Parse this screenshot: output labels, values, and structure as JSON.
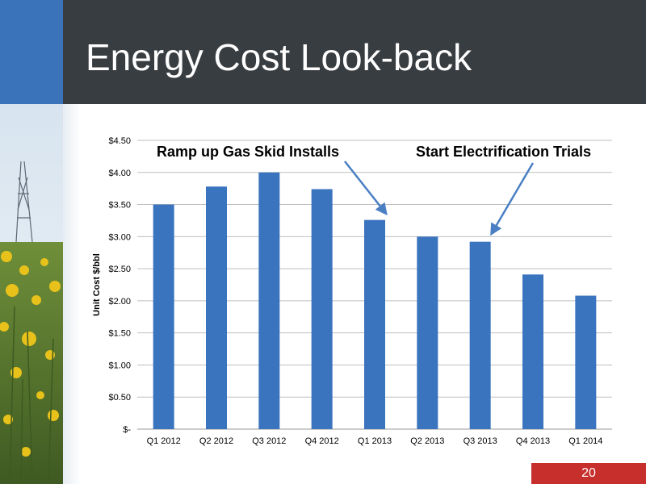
{
  "slide": {
    "title": "Energy Cost Look-back",
    "page_number": "20"
  },
  "colors": {
    "bar": "#3a74bf",
    "annotation_arrow": "#4a7fc4",
    "header_background": "#383d42",
    "accent_blue": "#3a73b9",
    "page_badge": "#c62f2c"
  },
  "chart_data": {
    "type": "bar",
    "categories": [
      "Q1 2012",
      "Q2 2012",
      "Q3 2012",
      "Q4 2012",
      "Q1 2013",
      "Q2 2013",
      "Q3 2013",
      "Q4 2013",
      "Q1 2014"
    ],
    "values": [
      3.5,
      3.78,
      4.0,
      3.74,
      3.26,
      3.0,
      2.92,
      2.41,
      2.08
    ],
    "ylabel": "Unit Cost $/bbl",
    "xlabel": "",
    "ylim": [
      0,
      4.5
    ],
    "yticks": [
      0,
      0.5,
      1.0,
      1.5,
      2.0,
      2.5,
      3.0,
      3.5,
      4.0,
      4.5
    ],
    "ytick_labels": [
      "$-",
      "$0.50",
      "$1.00",
      "$1.50",
      "$2.00",
      "$2.50",
      "$3.00",
      "$3.50",
      "$4.00",
      "$4.50"
    ],
    "grid": true,
    "annotations": [
      {
        "text": "Ramp up Gas Skid Installs",
        "target_category": "Q1 2013"
      },
      {
        "text": "Start Electrification Trials",
        "target_category": "Q3 2013"
      }
    ]
  }
}
